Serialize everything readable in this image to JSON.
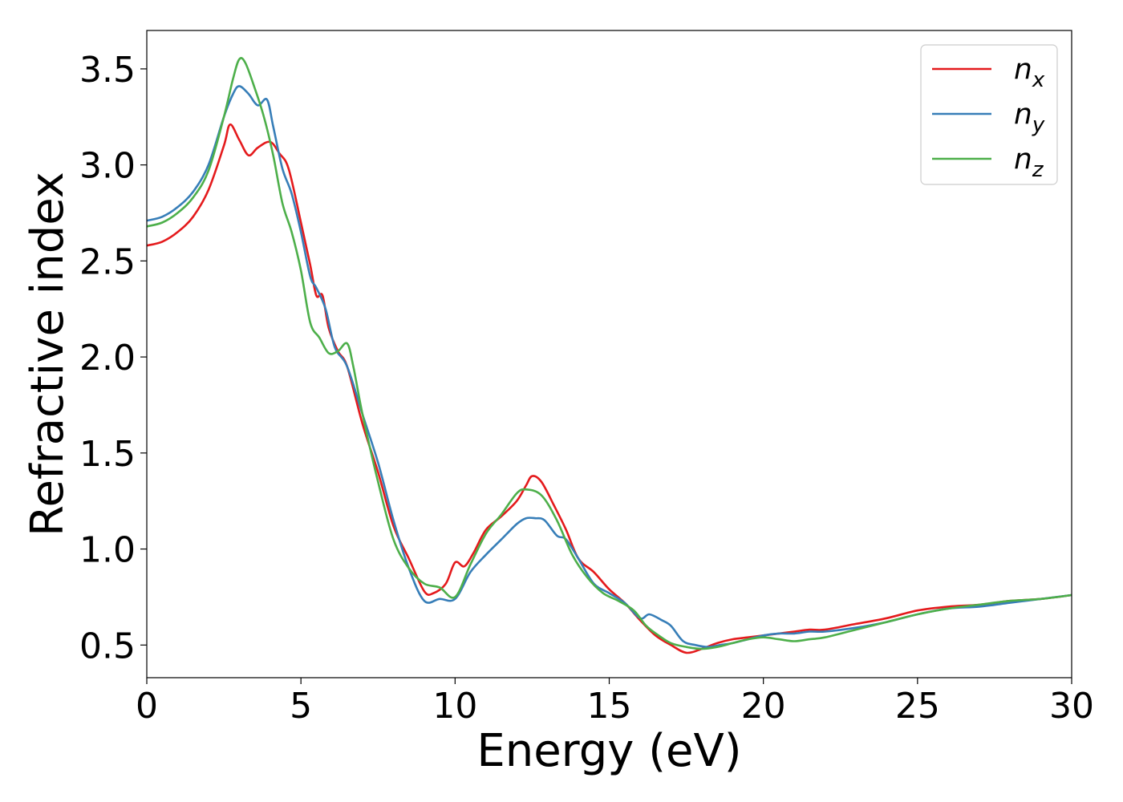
{
  "chart_data": {
    "type": "line",
    "title": "",
    "xlabel": "Energy (eV)",
    "ylabel": "Refractive index",
    "xlim": [
      0,
      30
    ],
    "ylim": [
      0.33,
      3.7
    ],
    "xticks": [
      0,
      5,
      10,
      15,
      20,
      25,
      30
    ],
    "yticks": [
      0.5,
      1.0,
      1.5,
      2.0,
      2.5,
      3.0,
      3.5
    ],
    "xtick_labels": [
      "0",
      "5",
      "10",
      "15",
      "20",
      "25",
      "30"
    ],
    "ytick_labels": [
      "0.5",
      "1.0",
      "1.5",
      "2.0",
      "2.5",
      "3.0",
      "3.5"
    ],
    "grid": false,
    "legend": {
      "position": "top-right"
    },
    "series": [
      {
        "name": "n",
        "sub": "x",
        "color": "#e41a1c",
        "x": [
          0,
          0.5,
          1.0,
          1.5,
          2.0,
          2.5,
          2.7,
          3.0,
          3.3,
          3.6,
          4.0,
          4.3,
          4.6,
          5.0,
          5.3,
          5.5,
          5.7,
          5.9,
          6.2,
          6.5,
          7.0,
          7.5,
          8.0,
          8.5,
          9.0,
          9.3,
          9.7,
          10.0,
          10.3,
          10.6,
          11.0,
          11.5,
          12.0,
          12.3,
          12.5,
          12.8,
          13.2,
          13.6,
          14.0,
          14.5,
          15.0,
          15.5,
          16.0,
          16.5,
          17.0,
          17.5,
          18.0,
          18.5,
          19.0,
          19.5,
          20.0,
          20.5,
          21.0,
          21.5,
          22.0,
          23.0,
          24.0,
          25.0,
          26.0,
          27.0,
          28.0,
          29.0,
          30.0
        ],
        "values": [
          2.58,
          2.6,
          2.65,
          2.73,
          2.87,
          3.1,
          3.21,
          3.13,
          3.05,
          3.09,
          3.12,
          3.06,
          2.98,
          2.7,
          2.48,
          2.32,
          2.32,
          2.15,
          2.03,
          1.95,
          1.65,
          1.4,
          1.12,
          0.95,
          0.78,
          0.77,
          0.82,
          0.93,
          0.91,
          0.98,
          1.1,
          1.17,
          1.25,
          1.33,
          1.38,
          1.35,
          1.23,
          1.1,
          0.95,
          0.88,
          0.79,
          0.72,
          0.63,
          0.55,
          0.5,
          0.46,
          0.48,
          0.51,
          0.53,
          0.54,
          0.55,
          0.56,
          0.57,
          0.58,
          0.58,
          0.61,
          0.64,
          0.68,
          0.7,
          0.71,
          0.73,
          0.74,
          0.76
        ]
      },
      {
        "name": "n",
        "sub": "y",
        "color": "#377eb8",
        "x": [
          0,
          0.5,
          1.0,
          1.5,
          2.0,
          2.5,
          2.8,
          3.0,
          3.3,
          3.6,
          3.9,
          4.1,
          4.4,
          4.7,
          5.0,
          5.3,
          5.5,
          5.8,
          6.1,
          6.5,
          7.0,
          7.5,
          8.0,
          8.5,
          9.0,
          9.5,
          10.0,
          10.5,
          11.0,
          11.5,
          12.0,
          12.3,
          12.6,
          12.9,
          13.3,
          13.6,
          14.0,
          14.5,
          15.0,
          15.5,
          16.0,
          16.3,
          16.7,
          17.0,
          17.4,
          17.8,
          18.2,
          18.6,
          19.0,
          19.5,
          20.0,
          20.5,
          21.0,
          21.5,
          22.0,
          23.0,
          24.0,
          25.0,
          26.0,
          27.0,
          28.0,
          29.0,
          30.0
        ],
        "values": [
          2.71,
          2.73,
          2.78,
          2.86,
          3.0,
          3.25,
          3.37,
          3.41,
          3.37,
          3.31,
          3.34,
          3.2,
          2.98,
          2.85,
          2.65,
          2.42,
          2.36,
          2.25,
          2.05,
          1.95,
          1.7,
          1.45,
          1.15,
          0.9,
          0.73,
          0.74,
          0.74,
          0.88,
          0.97,
          1.05,
          1.13,
          1.16,
          1.16,
          1.15,
          1.07,
          1.05,
          0.95,
          0.82,
          0.77,
          0.72,
          0.64,
          0.66,
          0.63,
          0.6,
          0.52,
          0.5,
          0.49,
          0.5,
          0.51,
          0.53,
          0.55,
          0.56,
          0.56,
          0.57,
          0.57,
          0.59,
          0.62,
          0.66,
          0.69,
          0.7,
          0.72,
          0.74,
          0.76
        ]
      },
      {
        "name": "n",
        "sub": "z",
        "color": "#4daf4a",
        "x": [
          0,
          0.5,
          1.0,
          1.5,
          2.0,
          2.5,
          2.8,
          3.0,
          3.2,
          3.5,
          3.8,
          4.1,
          4.4,
          4.7,
          5.0,
          5.3,
          5.6,
          5.9,
          6.2,
          6.5,
          6.7,
          7.0,
          7.5,
          8.0,
          8.5,
          9.0,
          9.5,
          10.0,
          10.5,
          11.0,
          11.5,
          12.0,
          12.3,
          12.8,
          13.3,
          13.8,
          14.3,
          14.8,
          15.3,
          15.8,
          16.2,
          16.6,
          17.0,
          17.5,
          18.0,
          18.5,
          19.0,
          19.5,
          20.0,
          20.5,
          21.0,
          21.5,
          22.0,
          23.0,
          24.0,
          25.0,
          26.0,
          27.0,
          28.0,
          29.0,
          30.0
        ],
        "values": [
          2.68,
          2.7,
          2.75,
          2.83,
          2.97,
          3.25,
          3.45,
          3.55,
          3.53,
          3.4,
          3.25,
          3.05,
          2.8,
          2.65,
          2.45,
          2.18,
          2.1,
          2.02,
          2.03,
          2.07,
          1.95,
          1.7,
          1.35,
          1.05,
          0.9,
          0.82,
          0.8,
          0.75,
          0.92,
          1.08,
          1.18,
          1.29,
          1.31,
          1.28,
          1.15,
          0.97,
          0.85,
          0.77,
          0.73,
          0.68,
          0.6,
          0.55,
          0.51,
          0.49,
          0.48,
          0.49,
          0.51,
          0.53,
          0.54,
          0.53,
          0.52,
          0.53,
          0.54,
          0.58,
          0.62,
          0.66,
          0.69,
          0.71,
          0.73,
          0.74,
          0.76
        ]
      }
    ]
  }
}
